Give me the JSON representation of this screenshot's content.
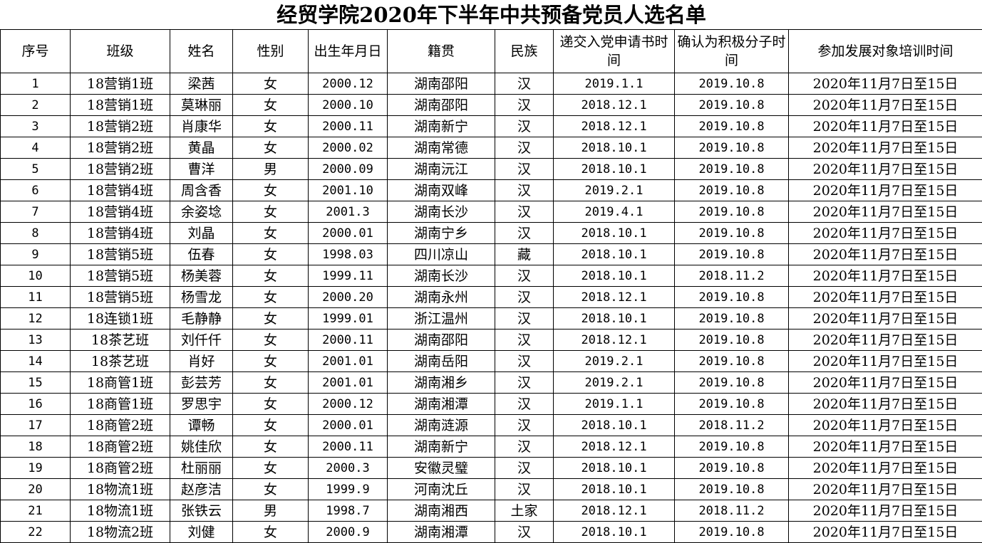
{
  "title": "经贸学院2020年下半年中共预备党员人选名单",
  "headers": [
    "序号",
    "班级",
    "姓名",
    "性别",
    "出生年月日",
    "籍贯",
    "民族",
    "递交入党申请书时间",
    "确认为积极分子时间",
    "参加发展对象培训时间"
  ],
  "rows": [
    [
      "1",
      "18营销1班",
      "梁茜",
      "女",
      "2000.12",
      "湖南邵阳",
      "汉",
      "2019.1.1",
      "2019.10.8",
      "2020年11月7日至15日"
    ],
    [
      "2",
      "18营销1班",
      "莫琳丽",
      "女",
      "2000.10",
      "湖南邵阳",
      "汉",
      "2018.12.1",
      "2019.10.8",
      "2020年11月7日至15日"
    ],
    [
      "3",
      "18营销2班",
      "肖康华",
      "女",
      "2000.11",
      "湖南新宁",
      "汉",
      "2018.12.1",
      "2019.10.8",
      "2020年11月7日至15日"
    ],
    [
      "4",
      "18营销2班",
      "黄晶",
      "女",
      "2000.02",
      "湖南常德",
      "汉",
      "2018.10.1",
      "2019.10.8",
      "2020年11月7日至15日"
    ],
    [
      "5",
      "18营销2班",
      "曹洋",
      "男",
      "2000.09",
      "湖南沅江",
      "汉",
      "2018.10.1",
      "2019.10.8",
      "2020年11月7日至15日"
    ],
    [
      "6",
      "18营销4班",
      "周含香",
      "女",
      "2001.10",
      "湖南双峰",
      "汉",
      "2019.2.1",
      "2019.10.8",
      "2020年11月7日至15日"
    ],
    [
      "7",
      "18营销4班",
      "余姿埝",
      "女",
      "2001.3",
      "湖南长沙",
      "汉",
      "2019.4.1",
      "2019.10.8",
      "2020年11月7日至15日"
    ],
    [
      "8",
      "18营销4班",
      "刘晶",
      "女",
      "2000.01",
      "湖南宁乡",
      "汉",
      "2018.10.1",
      "2019.10.8",
      "2020年11月7日至15日"
    ],
    [
      "9",
      "18营销5班",
      "伍春",
      "女",
      "1998.03",
      "四川凉山",
      "藏",
      "2018.10.1",
      "2019.10.8",
      "2020年11月7日至15日"
    ],
    [
      "10",
      "18营销5班",
      "杨美蓉",
      "女",
      "1999.11",
      "湖南长沙",
      "汉",
      "2018.10.1",
      "2018.11.2",
      "2020年11月7日至15日"
    ],
    [
      "11",
      "18营销5班",
      "杨雪龙",
      "女",
      "2000.20",
      "湖南永州",
      "汉",
      "2018.12.1",
      "2019.10.8",
      "2020年11月7日至15日"
    ],
    [
      "12",
      "18连锁1班",
      "毛静静",
      "女",
      "1999.01",
      "浙江温州",
      "汉",
      "2018.10.1",
      "2019.10.8",
      "2020年11月7日至15日"
    ],
    [
      "13",
      "18茶艺班",
      "刘仟仟",
      "女",
      "2000.11",
      "湖南邵阳",
      "汉",
      "2018.12.1",
      "2019.10.8",
      "2020年11月7日至15日"
    ],
    [
      "14",
      "18茶艺班",
      "肖好",
      "女",
      "2001.01",
      "湖南岳阳",
      "汉",
      "2019.2.1",
      "2019.10.8",
      "2020年11月7日至15日"
    ],
    [
      "15",
      "18商管1班",
      "彭芸芳",
      "女",
      "2001.01",
      "湖南湘乡",
      "汉",
      "2019.2.1",
      "2019.10.8",
      "2020年11月7日至15日"
    ],
    [
      "16",
      "18商管1班",
      "罗思宇",
      "女",
      "2000.12",
      "湖南湘潭",
      "汉",
      "2019.1.1",
      "2019.10.8",
      "2020年11月7日至15日"
    ],
    [
      "17",
      "18商管2班",
      "谭畅",
      "女",
      "2000.01",
      "湖南涟源",
      "汉",
      "2018.10.1",
      "2018.11.2",
      "2020年11月7日至15日"
    ],
    [
      "18",
      "18商管2班",
      "姚佳欣",
      "女",
      "2000.11",
      "湖南新宁",
      "汉",
      "2018.12.1",
      "2019.10.8",
      "2020年11月7日至15日"
    ],
    [
      "19",
      "18商管2班",
      "杜丽丽",
      "女",
      "2000.3",
      "安徽灵璧",
      "汉",
      "2018.10.1",
      "2019.10.8",
      "2020年11月7日至15日"
    ],
    [
      "20",
      "18物流1班",
      "赵彦洁",
      "女",
      "1999.9",
      "河南沈丘",
      "汉",
      "2018.10.1",
      "2019.10.8",
      "2020年11月7日至15日"
    ],
    [
      "21",
      "18物流1班",
      "张铁云",
      "男",
      "1998.7",
      "湖南湘西",
      "土家",
      "2018.12.1",
      "2018.11.2",
      "2020年11月7日至15日"
    ],
    [
      "22",
      "18物流2班",
      "刘健",
      "女",
      "2000.9",
      "湖南湘潭",
      "汉",
      "2018.10.1",
      "2019.10.8",
      "2020年11月7日至15日"
    ]
  ]
}
